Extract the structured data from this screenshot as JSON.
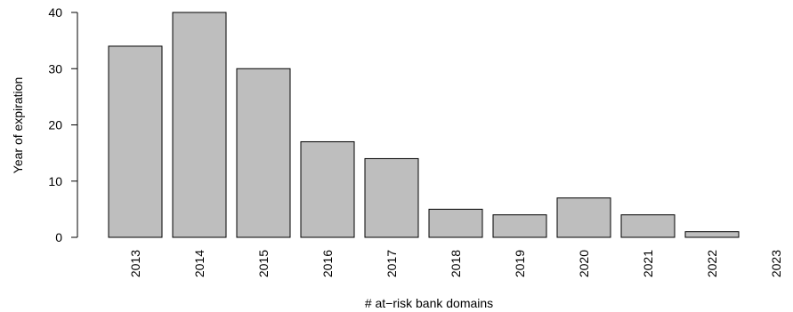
{
  "chart_data": {
    "type": "bar",
    "title": "",
    "xlabel": "# at−risk bank domains",
    "ylabel": "Year of expiration",
    "categories": [
      "2013",
      "2014",
      "2015",
      "2016",
      "2017",
      "2018",
      "2019",
      "2020",
      "2021",
      "2022",
      "2023"
    ],
    "values": [
      34,
      40,
      30,
      17,
      14,
      5,
      4,
      7,
      4,
      1,
      0
    ],
    "ylim": [
      0,
      40
    ],
    "yticks": [
      0,
      10,
      20,
      30,
      40
    ],
    "bar_color": "#bebebe",
    "grid": false,
    "legend": "none"
  }
}
